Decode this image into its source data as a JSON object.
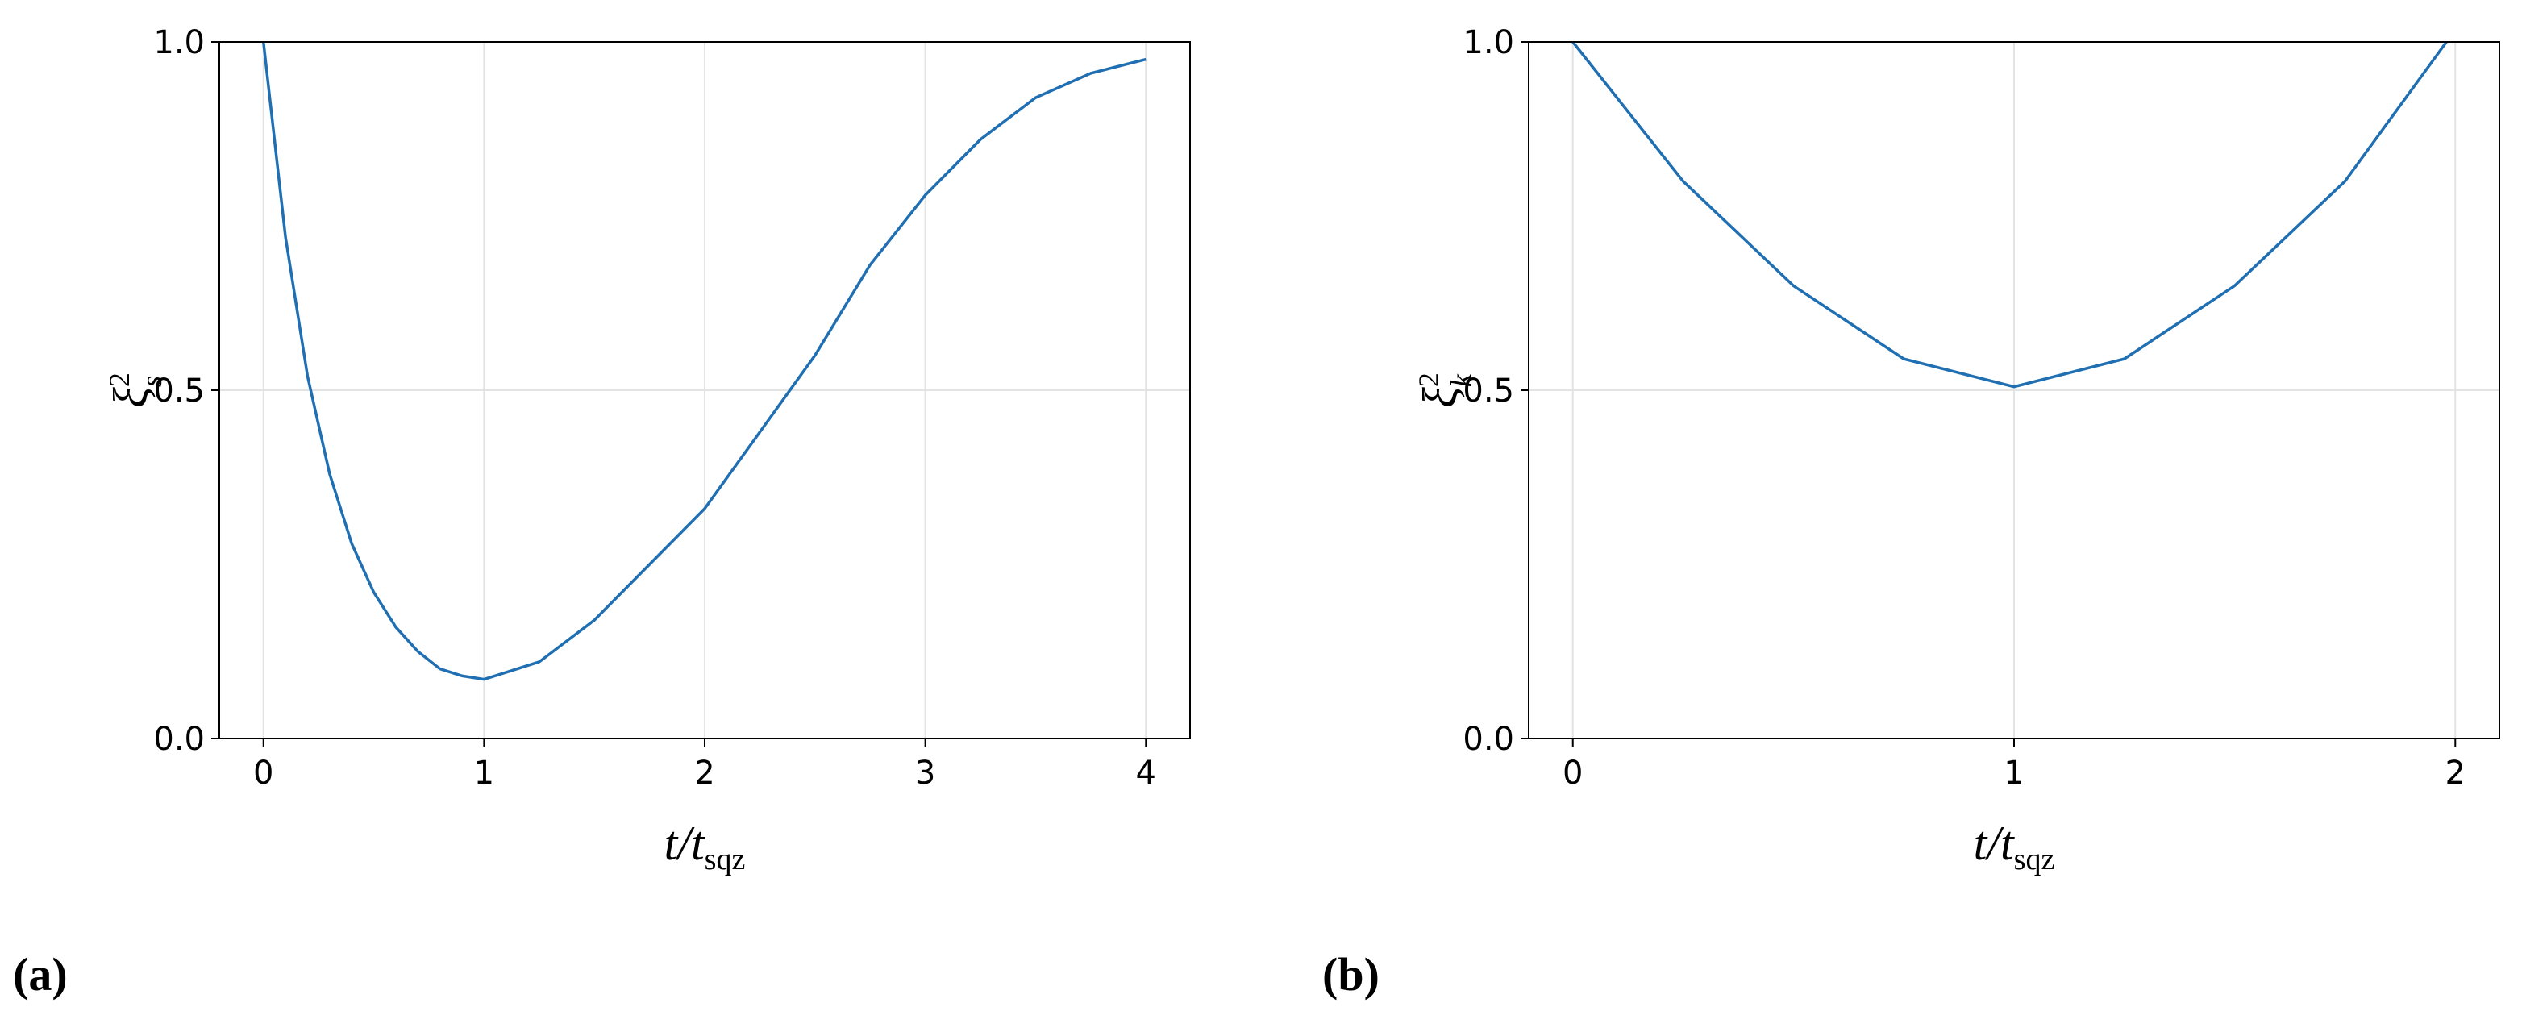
{
  "chart_data": [
    {
      "type": "line",
      "panel_label": "(a)",
      "xlabel": {
        "main": "t/t",
        "sub": "sqz"
      },
      "ylabel": {
        "main": "ξ",
        "sup": "2",
        "sub": "s"
      },
      "x": [
        0,
        0.1,
        0.2,
        0.3,
        0.4,
        0.5,
        0.6,
        0.7,
        0.8,
        0.9,
        1.0,
        1.25,
        1.5,
        1.75,
        2.0,
        2.25,
        2.5,
        2.75,
        3.0,
        3.25,
        3.5,
        3.75,
        4.0
      ],
      "series": [
        {
          "color": "#1f6fb2",
          "values": [
            1.0,
            0.72,
            0.52,
            0.38,
            0.28,
            0.21,
            0.16,
            0.125,
            0.1,
            0.09,
            0.085,
            0.11,
            0.17,
            0.25,
            0.33,
            0.44,
            0.55,
            0.68,
            0.78,
            0.86,
            0.92,
            0.955,
            0.975
          ]
        }
      ],
      "xlim": [
        -0.2,
        4.2
      ],
      "xticks": [
        0,
        1,
        2,
        3,
        4
      ],
      "ylim": [
        0,
        1
      ],
      "yticks": [
        {
          "value": 0,
          "label": "0.0"
        },
        0.5,
        {
          "value": 1,
          "label": "1.0"
        }
      ],
      "grid": true
    },
    {
      "type": "line",
      "panel_label": "(b)",
      "xlabel": {
        "main": "t/t",
        "sub": "sqz"
      },
      "ylabel": {
        "main": "ξ",
        "sup": "2",
        "sub": "k"
      },
      "x": [
        0,
        0.25,
        0.5,
        0.75,
        1.0,
        1.25,
        1.5,
        1.75,
        1.98
      ],
      "series": [
        {
          "color": "#1f6fb2",
          "values": [
            1.0,
            0.8,
            0.65,
            0.545,
            0.505,
            0.545,
            0.65,
            0.8,
            1.0
          ]
        }
      ],
      "xlim": [
        -0.1,
        2.1
      ],
      "xticks": [
        0,
        1,
        2
      ],
      "ylim": [
        0,
        1
      ],
      "yticks": [
        {
          "value": 0,
          "label": "0.0"
        },
        0.5,
        {
          "value": 1,
          "label": "1.0"
        }
      ],
      "grid": true
    }
  ]
}
